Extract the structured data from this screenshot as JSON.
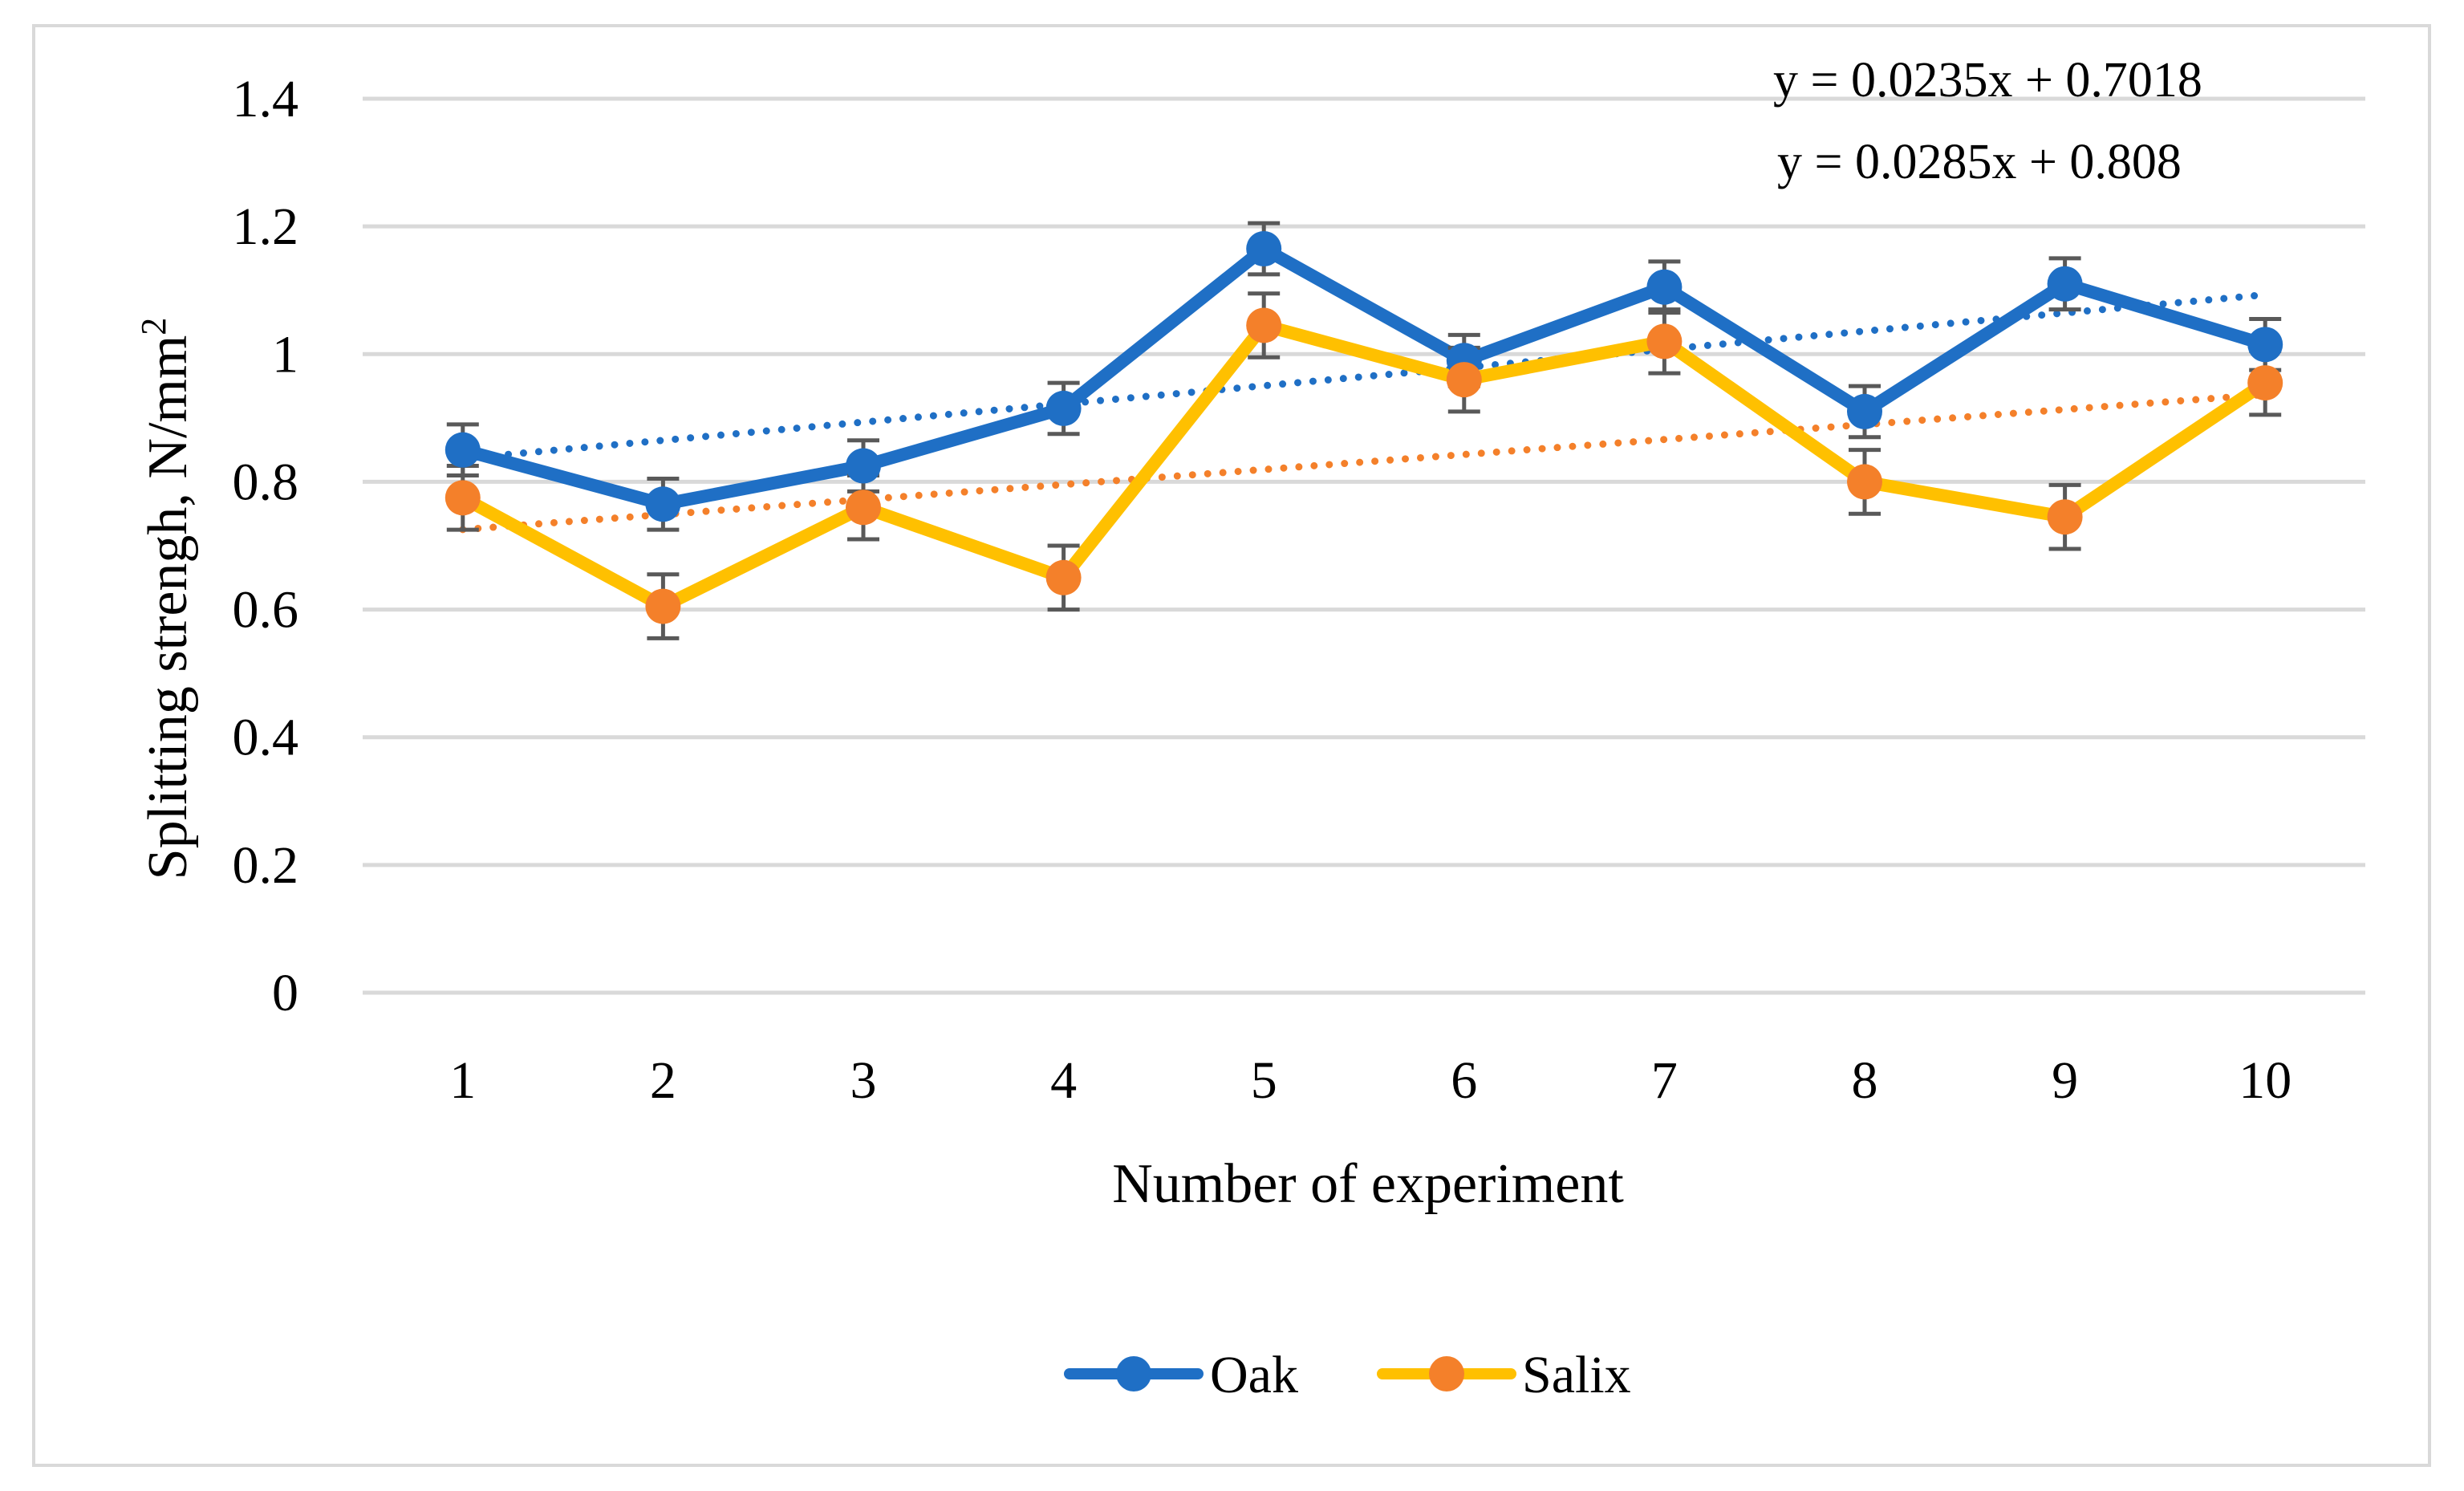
{
  "chart_data": {
    "type": "line",
    "title": "",
    "xlabel": "Number of experiment",
    "ylabel": "Splitting strengh, N/mm",
    "ylabel_superscript": "2",
    "categories": [
      "1",
      "2",
      "3",
      "4",
      "5",
      "6",
      "7",
      "8",
      "9",
      "10"
    ],
    "ylim": [
      0,
      1.4
    ],
    "yticks": [
      "0",
      "0.2",
      "0.4",
      "0.6",
      "0.8",
      "1",
      "1.2",
      "1.4"
    ],
    "ytick_values": [
      0,
      0.2,
      0.4,
      0.6,
      0.8,
      1.0,
      1.2,
      1.4
    ],
    "grid": true,
    "legend_position": "bottom-center",
    "series": [
      {
        "name": "Oak",
        "values": [
          0.85,
          0.765,
          0.825,
          0.915,
          1.165,
          0.99,
          1.105,
          0.91,
          1.11,
          1.015
        ],
        "error": 0.04,
        "line_color": "#1f6fc5",
        "marker_color": "#1f6fc5",
        "trendline": {
          "slope": 0.0285,
          "intercept": 0.808,
          "color": "#1f6fc5"
        }
      },
      {
        "name": "Salix",
        "values": [
          0.775,
          0.605,
          0.76,
          0.65,
          1.045,
          0.96,
          1.02,
          0.8,
          0.745,
          0.955
        ],
        "error": 0.05,
        "line_color": "#ffc000",
        "marker_color": "#f4802a",
        "trendline": {
          "slope": 0.0235,
          "intercept": 0.7018,
          "color": "#f4802a"
        }
      }
    ],
    "annotations": [
      "y = 0.0235x + 0.7018",
      "y = 0.0285x + 0.808"
    ]
  }
}
